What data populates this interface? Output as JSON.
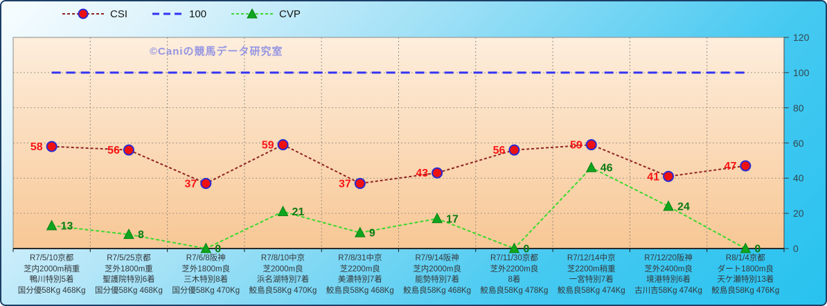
{
  "frame": {
    "watermark": "©Caniの競馬データ研究室"
  },
  "colors": {
    "frame_border": "#1c3e66",
    "background_top": "#f8fdfe",
    "background_bottom": "#28c2ef",
    "plot_bg_top": "#fdeedd",
    "plot_bg_bottom": "#f8c795",
    "grid": "#a09789",
    "axis_line": "#2a2a2a",
    "watermark": "#9595e2"
  },
  "chart_data": {
    "type": "line",
    "title": "",
    "watermark": "©Caniの競馬データ研究室",
    "legend_position": "top-left",
    "grid": true,
    "y_axis": {
      "side": "right",
      "min": 0,
      "max": 120,
      "step": 20,
      "ticks": [
        0,
        20,
        40,
        60,
        80,
        100,
        120
      ]
    },
    "categories": [
      [
        "R7/5/10京都",
        "芝内2000m稍重",
        "鴨川特別5着",
        "国分優58Kg 468Kg"
      ],
      [
        "R7/5/25京都",
        "芝外1800m重",
        "聖護院特別6着",
        "国分優58Kg 468Kg"
      ],
      [
        "R7/6/8阪神",
        "芝外1800m良",
        "三木特別8着",
        "国分優58Kg 470Kg"
      ],
      [
        "R7/8/10中京",
        "芝2000m良",
        "浜名湖特別7着",
        "鮫島良58Kg 470Kg"
      ],
      [
        "R7/8/31中京",
        "芝2200m良",
        "美濃特別7着",
        "鮫島良58Kg 468Kg"
      ],
      [
        "R7/9/14阪神",
        "芝内2000m良",
        "能勢特別7着",
        "鮫島良58Kg 468Kg"
      ],
      [
        "R7/11/30京都",
        "芝外2200m良",
        "8着",
        "鮫島良58Kg 478Kg"
      ],
      [
        "R7/12/14中京",
        "芝2200m稍重",
        "一宮特別7着",
        "鮫島良58Kg 474Kg"
      ],
      [
        "R7/12/20阪神",
        "芝外2400m良",
        "境港特別6着",
        "古川吉58Kg 474Kg"
      ],
      [
        "R8/1/4京都",
        "ダート1800m良",
        "天ケ瀬特別13着",
        "鮫島良58Kg 476Kg"
      ]
    ],
    "series": [
      {
        "name": "CSI",
        "type": "line",
        "marker": "circle",
        "line_color": "#8f2222",
        "line_dash": "4 3",
        "marker_fill": "#ee1111",
        "marker_stroke": "#2a2ad0",
        "label_color": "#fa1414",
        "label_side": "left",
        "values": [
          58,
          56,
          37,
          59,
          37,
          43,
          56,
          59,
          41,
          47
        ]
      },
      {
        "name": "100",
        "type": "hline",
        "value": 100,
        "line_color": "#3232f5",
        "line_dash": "13 8"
      },
      {
        "name": "CVP",
        "type": "line",
        "marker": "triangle",
        "line_color": "#3ad92e",
        "line_dash": "5 3",
        "marker_fill": "#0fa51e",
        "marker_stroke": "#0a8212",
        "label_color": "#0b7a14",
        "label_side": "right",
        "values": [
          13,
          8,
          0,
          21,
          9,
          17,
          0,
          46,
          24,
          0
        ]
      }
    ]
  }
}
